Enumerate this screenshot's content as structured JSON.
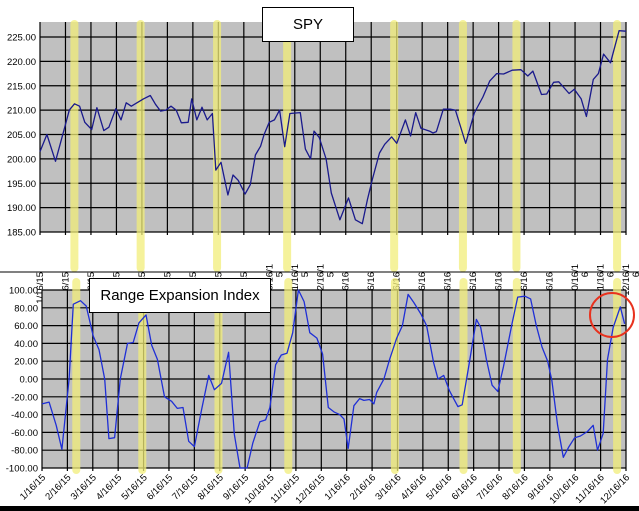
{
  "chart_data": [
    {
      "type": "line",
      "title": "SPY",
      "xlabel": "",
      "ylabel": "",
      "ylim": [
        185,
        225
      ],
      "yticks": [
        "225.00",
        "220.00",
        "215.00",
        "210.00",
        "205.00",
        "200.00",
        "195.00",
        "190.00",
        "185.00"
      ],
      "xticks": [
        "1/16/15",
        "2/16/15",
        "3/16/15",
        "4/16/15",
        "5/16/15",
        "6/16/15",
        "7/16/15",
        "8/16/15",
        "9/16/15",
        "10/16/15",
        "11/16/15",
        "12/16/15",
        "1/16/16",
        "2/16/16",
        "3/16/16",
        "4/16/16",
        "5/16/16",
        "6/16/16",
        "7/16/16",
        "8/16/16",
        "9/16/16",
        "10/16/16",
        "11/16/16",
        "12/16/16"
      ],
      "grid": true,
      "background": "#c0c0c0",
      "line_color": "#1a1a8c",
      "series": [
        {
          "name": "SPY",
          "points": [
            [
              0,
              201.5
            ],
            [
              0.2,
              205
            ],
            [
              0.45,
              199.5
            ],
            [
              0.7,
              206
            ],
            [
              0.85,
              210
            ],
            [
              1.0,
              211.3
            ],
            [
              1.15,
              210.8
            ],
            [
              1.3,
              207.5
            ],
            [
              1.5,
              206
            ],
            [
              1.65,
              210.5
            ],
            [
              1.85,
              205.8
            ],
            [
              2.0,
              206.5
            ],
            [
              2.2,
              210.3
            ],
            [
              2.35,
              208
            ],
            [
              2.5,
              211.5
            ],
            [
              2.65,
              210.8
            ],
            [
              3.0,
              212.3
            ],
            [
              3.2,
              213
            ],
            [
              3.35,
              211.2
            ],
            [
              3.5,
              209.8
            ],
            [
              3.65,
              210
            ],
            [
              3.8,
              210.8
            ],
            [
              3.95,
              210
            ],
            [
              4.1,
              207.4
            ],
            [
              4.3,
              207.5
            ],
            [
              4.4,
              212.3
            ],
            [
              4.55,
              208
            ],
            [
              4.7,
              210.6
            ],
            [
              4.85,
              208
            ],
            [
              5.0,
              209.3
            ],
            [
              5.1,
              197.7
            ],
            [
              5.25,
              199.3
            ],
            [
              5.45,
              192.6
            ],
            [
              5.6,
              196.7
            ],
            [
              5.75,
              195.6
            ],
            [
              5.95,
              192.8
            ],
            [
              6.1,
              194.7
            ],
            [
              6.25,
              200.8
            ],
            [
              6.4,
              202.6
            ],
            [
              6.5,
              205
            ],
            [
              6.65,
              207.5
            ],
            [
              6.8,
              208
            ],
            [
              6.95,
              210
            ],
            [
              7.1,
              202.5
            ],
            [
              7.25,
              209.3
            ],
            [
              7.55,
              209.5
            ],
            [
              7.7,
              202
            ],
            [
              7.85,
              200
            ],
            [
              7.95,
              205.7
            ],
            [
              8.1,
              204.4
            ],
            [
              8.3,
              200
            ],
            [
              8.45,
              193
            ],
            [
              8.7,
              187.5
            ],
            [
              8.95,
              192
            ],
            [
              9.15,
              187.5
            ],
            [
              9.35,
              186.7
            ],
            [
              9.5,
              191.7
            ],
            [
              9.65,
              196
            ],
            [
              9.85,
              201.2
            ],
            [
              10.0,
              203
            ],
            [
              10.2,
              204.5
            ],
            [
              10.35,
              203.2
            ],
            [
              10.6,
              208
            ],
            [
              10.75,
              204.7
            ],
            [
              10.9,
              209.5
            ],
            [
              11.05,
              206.3
            ],
            [
              11.3,
              205.7
            ],
            [
              11.4,
              205.3
            ],
            [
              11.5,
              205.6
            ],
            [
              11.7,
              210.2
            ],
            [
              11.9,
              210.2
            ],
            [
              12.05,
              210
            ],
            [
              12.35,
              203.2
            ],
            [
              12.6,
              209.4
            ],
            [
              12.85,
              212.7
            ],
            [
              13.05,
              216
            ],
            [
              13.25,
              217.5
            ],
            [
              13.45,
              217.4
            ],
            [
              13.7,
              218.2
            ],
            [
              13.95,
              218.3
            ],
            [
              14.15,
              217
            ],
            [
              14.3,
              218
            ],
            [
              14.55,
              213.2
            ],
            [
              14.7,
              213.3
            ],
            [
              14.9,
              215.7
            ],
            [
              15.05,
              215.8
            ],
            [
              15.35,
              213.4
            ],
            [
              15.5,
              214.3
            ],
            [
              15.7,
              212.3
            ],
            [
              15.85,
              208.7
            ],
            [
              16.05,
              216.3
            ],
            [
              16.2,
              217.5
            ],
            [
              16.35,
              221.5
            ],
            [
              16.55,
              219.7
            ],
            [
              16.8,
              226.3
            ],
            [
              17.0,
              226.2
            ]
          ]
        }
      ],
      "highlight_bands_x": [
        1.35,
        3.95,
        7.0,
        9.75,
        14.0,
        16.75
      ]
    },
    {
      "type": "line",
      "title": "Range Expansion Index",
      "xlabel": "",
      "ylabel": "",
      "ylim": [
        -100,
        100
      ],
      "yticks": [
        "100.00",
        "80.00",
        "60.00",
        "40.00",
        "20.00",
        "0.00",
        "-20.00",
        "-40.00",
        "-60.00",
        "-80.00",
        "-100.00"
      ],
      "xticks": [
        "1/16/15",
        "2/16/15",
        "3/16/15",
        "4/16/15",
        "5/16/15",
        "6/16/15",
        "7/16/15",
        "8/16/15",
        "9/16/15",
        "10/16/15",
        "11/16/15",
        "12/16/15",
        "1/16/16",
        "2/16/16",
        "3/16/16",
        "4/16/16",
        "5/16/16",
        "6/16/16",
        "7/16/16",
        "8/16/16",
        "9/16/16",
        "10/16/16",
        "11/16/16",
        "12/16/16"
      ],
      "grid": true,
      "background": "#c0c0c0",
      "line_color": "#1f2fd6",
      "annotation": {
        "type": "circle",
        "color": "#e8321e",
        "target": "latest value ~80 at 12/16/16"
      },
      "series": [
        {
          "name": "Range Expansion Index",
          "points": [
            [
              0,
              -28
            ],
            [
              0.25,
              -26
            ],
            [
              0.5,
              -52
            ],
            [
              0.7,
              -79
            ],
            [
              0.95,
              0
            ],
            [
              1.1,
              84
            ],
            [
              1.35,
              88
            ],
            [
              1.55,
              82
            ],
            [
              1.8,
              48
            ],
            [
              2.0,
              33
            ],
            [
              2.2,
              0
            ],
            [
              2.35,
              -67
            ],
            [
              2.55,
              -66
            ],
            [
              2.75,
              0
            ],
            [
              3.0,
              40
            ],
            [
              3.2,
              41
            ],
            [
              3.4,
              63
            ],
            [
              3.65,
              72
            ],
            [
              3.85,
              38
            ],
            [
              4.05,
              22
            ],
            [
              4.3,
              -20
            ],
            [
              4.55,
              -25
            ],
            [
              4.75,
              -33
            ],
            [
              4.95,
              -32
            ],
            [
              5.15,
              -70
            ],
            [
              5.35,
              -76
            ],
            [
              5.6,
              -35
            ],
            [
              5.85,
              4
            ],
            [
              6.05,
              -12
            ],
            [
              6.3,
              -5
            ],
            [
              6.55,
              30
            ],
            [
              6.75,
              -62
            ],
            [
              6.95,
              -100
            ],
            [
              7.2,
              -100
            ],
            [
              7.4,
              -72
            ],
            [
              7.65,
              -48
            ],
            [
              7.85,
              -46
            ],
            [
              8.0,
              -32
            ],
            [
              8.2,
              16
            ],
            [
              8.4,
              27
            ],
            [
              8.6,
              29
            ],
            [
              8.8,
              52
            ],
            [
              9.0,
              100
            ],
            [
              9.2,
              87
            ],
            [
              9.4,
              52
            ],
            [
              9.65,
              46
            ],
            [
              9.85,
              28
            ],
            [
              10.05,
              -32
            ],
            [
              10.25,
              -37
            ],
            [
              10.45,
              -40
            ],
            [
              10.6,
              -45
            ],
            [
              10.75,
              -78
            ],
            [
              10.95,
              -30
            ],
            [
              11.15,
              -22
            ],
            [
              11.3,
              -24
            ],
            [
              11.5,
              -23
            ],
            [
              11.65,
              -28
            ],
            [
              11.75,
              -15
            ],
            [
              12.0,
              0
            ],
            [
              12.2,
              22
            ],
            [
              12.45,
              46
            ],
            [
              12.65,
              60
            ],
            [
              12.85,
              95
            ],
            [
              13.05,
              86
            ],
            [
              13.3,
              73
            ],
            [
              13.5,
              60
            ],
            [
              13.75,
              18
            ],
            [
              13.9,
              0
            ],
            [
              14.1,
              4
            ],
            [
              14.3,
              -13
            ],
            [
              14.45,
              -22
            ],
            [
              14.6,
              -31
            ],
            [
              14.75,
              -29
            ],
            [
              15.0,
              18
            ],
            [
              15.25,
              67
            ],
            [
              15.4,
              58
            ],
            [
              15.6,
              22
            ],
            [
              15.8,
              -7
            ],
            [
              16.0,
              -14
            ],
            [
              16.2,
              14
            ],
            [
              16.5,
              62
            ],
            [
              16.7,
              92
            ],
            [
              16.95,
              93
            ],
            [
              17.15,
              90
            ],
            [
              17.35,
              60
            ],
            [
              17.55,
              36
            ],
            [
              17.75,
              20
            ],
            [
              17.9,
              -2
            ],
            [
              18.1,
              -52
            ],
            [
              18.3,
              -88
            ],
            [
              18.5,
              -76
            ],
            [
              18.7,
              -66
            ],
            [
              18.9,
              -64
            ],
            [
              19.15,
              -59
            ],
            [
              19.35,
              -52
            ],
            [
              19.5,
              -80
            ],
            [
              19.7,
              -61
            ],
            [
              19.85,
              22
            ],
            [
              20.05,
              58
            ],
            [
              20.3,
              81
            ],
            [
              20.45,
              62
            ]
          ]
        }
      ],
      "highlight_bands_x": [
        1.35,
        3.95,
        7.0,
        9.75,
        14.0,
        16.75,
        18.85,
        22.65
      ]
    }
  ],
  "panels": {
    "top": {
      "title": "SPY"
    },
    "bottom": {
      "title": "Range Expansion Index"
    }
  },
  "colors": {
    "plot_bg": "#c0c0c0",
    "grid": "#000000",
    "highlight": "#f2ee7a",
    "spy_line": "#1a1a8c",
    "rei_line": "#1f2fd6",
    "annotation_circle": "#e8321e"
  }
}
